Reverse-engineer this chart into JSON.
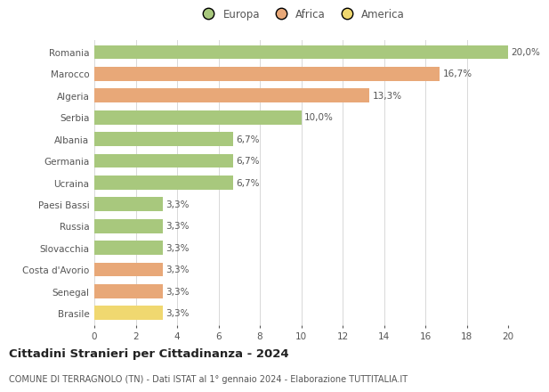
{
  "countries": [
    "Romania",
    "Marocco",
    "Algeria",
    "Serbia",
    "Albania",
    "Germania",
    "Ucraina",
    "Paesi Bassi",
    "Russia",
    "Slovacchia",
    "Costa d'Avorio",
    "Senegal",
    "Brasile"
  ],
  "values": [
    20.0,
    16.7,
    13.3,
    10.0,
    6.7,
    6.7,
    6.7,
    3.3,
    3.3,
    3.3,
    3.3,
    3.3,
    3.3
  ],
  "labels": [
    "20,0%",
    "16,7%",
    "13,3%",
    "10,0%",
    "6,7%",
    "6,7%",
    "6,7%",
    "3,3%",
    "3,3%",
    "3,3%",
    "3,3%",
    "3,3%",
    "3,3%"
  ],
  "continents": [
    "Europa",
    "Africa",
    "Africa",
    "Europa",
    "Europa",
    "Europa",
    "Europa",
    "Europa",
    "Europa",
    "Europa",
    "Africa",
    "Africa",
    "America"
  ],
  "colors": {
    "Europa": "#a8c87d",
    "Africa": "#e8a878",
    "America": "#f0d870"
  },
  "title_main": "Cittadini Stranieri per Cittadinanza - 2024",
  "title_sub": "COMUNE DI TERRAGNOLO (TN) - Dati ISTAT al 1° gennaio 2024 - Elaborazione TUTTITALIA.IT",
  "xlim": [
    0,
    20
  ],
  "xticks": [
    0,
    2,
    4,
    6,
    8,
    10,
    12,
    14,
    16,
    18,
    20
  ],
  "background_color": "#ffffff",
  "grid_color": "#d8d8d8",
  "bar_height": 0.65,
  "label_fontsize": 7.5,
  "tick_fontsize": 7.5,
  "ytick_fontsize": 7.5,
  "legend_fontsize": 8.5,
  "title_fontsize": 9.5,
  "subtitle_fontsize": 7.0,
  "text_color": "#555555"
}
